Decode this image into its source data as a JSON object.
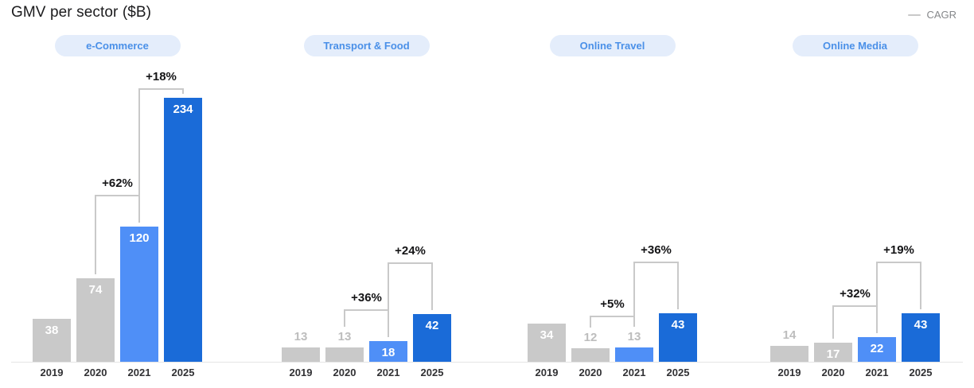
{
  "chart_data": {
    "type": "bar",
    "title": "GMV per sector ($B)",
    "unit": "$B",
    "legend": "CAGR",
    "years": [
      "2019",
      "2020",
      "2021",
      "2025"
    ],
    "ylim": [
      0,
      234
    ],
    "grid": false,
    "legend_position": "top-right",
    "bar_colors": [
      "#c9c9c9",
      "#c9c9c9",
      "#4f8ff7",
      "#1a6bd8"
    ],
    "value_label_inside_color": "#ffffff",
    "value_label_outside_color": "#bdbdbd",
    "pill_bg": "#e4edfb",
    "pill_text_color": "#4a90e8",
    "axis_color": "#e4e4e4",
    "bracket_color": "#c9c9c9",
    "sectors": [
      {
        "name": "e-Commerce",
        "values": [
          38,
          74,
          120,
          234
        ],
        "cagr": [
          {
            "from": "2020",
            "to": "2021",
            "label": "+62%"
          },
          {
            "from": "2021",
            "to": "2025",
            "label": "+18%"
          }
        ]
      },
      {
        "name": "Transport & Food",
        "values": [
          13,
          13,
          18,
          42
        ],
        "cagr": [
          {
            "from": "2020",
            "to": "2021",
            "label": "+36%"
          },
          {
            "from": "2021",
            "to": "2025",
            "label": "+24%"
          }
        ]
      },
      {
        "name": "Online Travel",
        "values": [
          34,
          12,
          13,
          43
        ],
        "cagr": [
          {
            "from": "2020",
            "to": "2021",
            "label": "+5%"
          },
          {
            "from": "2021",
            "to": "2025",
            "label": "+36%"
          }
        ]
      },
      {
        "name": "Online Media",
        "values": [
          14,
          17,
          22,
          43
        ],
        "cagr": [
          {
            "from": "2020",
            "to": "2021",
            "label": "+32%"
          },
          {
            "from": "2021",
            "to": "2025",
            "label": "+19%"
          }
        ]
      }
    ]
  }
}
